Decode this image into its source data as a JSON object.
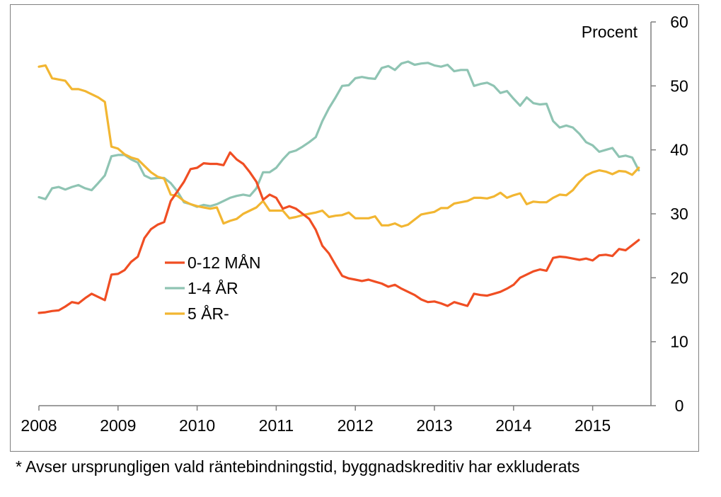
{
  "chart_data": {
    "type": "line",
    "unit_label": "Procent",
    "x_ticks": [
      "2008",
      "2009",
      "2010",
      "2011",
      "2012",
      "2013",
      "2014",
      "2015"
    ],
    "y_ticks": [
      "0",
      "10",
      "20",
      "30",
      "40",
      "50",
      "60"
    ],
    "ylim": [
      0,
      60
    ],
    "xlim": [
      2008,
      2015.75
    ],
    "y_axis_position": "right",
    "grid": false,
    "legend_position": "middle-left",
    "x_start": 2008.0,
    "x_step_months": 1,
    "series": [
      {
        "name": "0-12 MÅN",
        "color": "#f04e23",
        "values": [
          14.5,
          14.6,
          14.8,
          14.9,
          15.5,
          16.2,
          16.0,
          16.8,
          17.5,
          17.0,
          16.5,
          20.5,
          20.6,
          21.2,
          22.5,
          23.3,
          26.2,
          27.6,
          28.3,
          28.7,
          32.0,
          33.5,
          35.0,
          37.0,
          37.2,
          37.9,
          37.8,
          37.8,
          37.6,
          39.6,
          38.5,
          37.8,
          36.5,
          35.0,
          32.2,
          33.0,
          32.5,
          30.8,
          31.2,
          30.8,
          30.0,
          29.2,
          27.5,
          25.0,
          23.8,
          22.0,
          20.3,
          19.9,
          19.7,
          19.5,
          19.7,
          19.4,
          19.1,
          18.6,
          18.9,
          18.3,
          17.8,
          17.3,
          16.6,
          16.2,
          16.3,
          16.0,
          15.6,
          16.2,
          15.9,
          15.6,
          17.5,
          17.3,
          17.2,
          17.5,
          17.8,
          18.3,
          18.9,
          20.0,
          20.5,
          21.0,
          21.3,
          21.1,
          23.1,
          23.3,
          23.2,
          23.0,
          22.8,
          23.0,
          22.7,
          23.5,
          23.6,
          23.4,
          24.5,
          24.3,
          25.1,
          25.9
        ]
      },
      {
        "name": "1-4 ÅR",
        "color": "#8fc4b3",
        "values": [
          32.6,
          32.3,
          34.0,
          34.2,
          33.8,
          34.2,
          34.5,
          34.0,
          33.7,
          34.8,
          36.0,
          39.0,
          39.2,
          39.2,
          38.5,
          38.0,
          36.0,
          35.5,
          35.6,
          35.6,
          34.8,
          33.5,
          31.8,
          31.5,
          31.1,
          31.4,
          31.2,
          31.5,
          32.0,
          32.5,
          32.8,
          33.0,
          32.8,
          34.0,
          36.5,
          36.5,
          37.2,
          38.5,
          39.6,
          39.9,
          40.5,
          41.2,
          42.0,
          44.5,
          46.5,
          48.2,
          50.0,
          50.1,
          51.2,
          51.4,
          51.2,
          51.1,
          52.8,
          53.1,
          52.5,
          53.5,
          53.8,
          53.3,
          53.5,
          53.6,
          53.2,
          53.0,
          53.3,
          52.3,
          52.5,
          52.5,
          50.0,
          50.3,
          50.5,
          50.0,
          48.9,
          49.2,
          48.0,
          46.9,
          48.2,
          47.3,
          47.1,
          47.2,
          44.5,
          43.5,
          43.8,
          43.5,
          42.5,
          41.2,
          40.7,
          39.7,
          40.0,
          40.3,
          38.9,
          39.1,
          38.8,
          36.8
        ]
      },
      {
        "name": "5 ÅR-",
        "color": "#f2b632",
        "values": [
          53.0,
          53.2,
          51.2,
          51.0,
          50.8,
          49.5,
          49.5,
          49.2,
          48.7,
          48.2,
          47.5,
          40.5,
          40.2,
          39.3,
          38.8,
          38.5,
          37.5,
          36.5,
          35.8,
          35.5,
          33.0,
          32.8,
          32.0,
          31.5,
          31.2,
          31.0,
          30.8,
          31.0,
          28.5,
          28.9,
          29.2,
          30.0,
          30.5,
          31.0,
          32.0,
          30.5,
          30.5,
          30.5,
          29.3,
          29.5,
          29.8,
          30.0,
          30.2,
          30.5,
          29.5,
          29.7,
          29.8,
          30.2,
          29.3,
          29.3,
          29.3,
          29.6,
          28.2,
          28.2,
          28.5,
          28.0,
          28.3,
          29.1,
          29.9,
          30.1,
          30.3,
          30.9,
          30.9,
          31.6,
          31.8,
          32.0,
          32.5,
          32.5,
          32.4,
          32.7,
          33.3,
          32.5,
          32.9,
          33.2,
          31.5,
          31.9,
          31.8,
          31.8,
          32.5,
          33.0,
          32.9,
          33.7,
          35.0,
          36.0,
          36.5,
          36.8,
          36.6,
          36.2,
          36.7,
          36.6,
          36.1,
          37.2
        ]
      }
    ]
  },
  "footnote": "* Avser ursprungligen vald räntebindningstid, byggnadskreditiv har exkluderats"
}
